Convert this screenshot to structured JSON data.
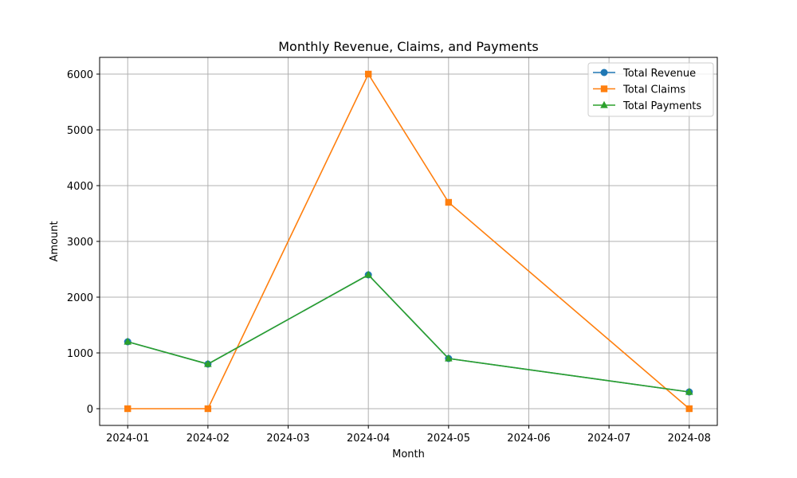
{
  "chart_data": {
    "type": "line",
    "title": "Monthly Revenue, Claims, and Payments",
    "xlabel": "Month",
    "ylabel": "Amount",
    "x_ticks": [
      "2024-01",
      "2024-02",
      "2024-03",
      "2024-04",
      "2024-05",
      "2024-06",
      "2024-07",
      "2024-08"
    ],
    "x": [
      "2024-01",
      "2024-02",
      "2024-04",
      "2024-05",
      "2024-08"
    ],
    "yticks": [
      0,
      1000,
      2000,
      3000,
      4000,
      5000,
      6000
    ],
    "ylim": [
      -300,
      6300
    ],
    "grid": true,
    "legend_position": "top-right",
    "series": [
      {
        "name": "Total Revenue",
        "color": "#1f77b4",
        "marker": "circle",
        "values": [
          1200,
          800,
          2400,
          900,
          300
        ]
      },
      {
        "name": "Total Claims",
        "color": "#ff7f0e",
        "marker": "square",
        "values": [
          0,
          0,
          6000,
          3700,
          0
        ]
      },
      {
        "name": "Total Payments",
        "color": "#2ca02c",
        "marker": "triangle",
        "values": [
          1200,
          800,
          2400,
          900,
          300
        ]
      }
    ]
  }
}
